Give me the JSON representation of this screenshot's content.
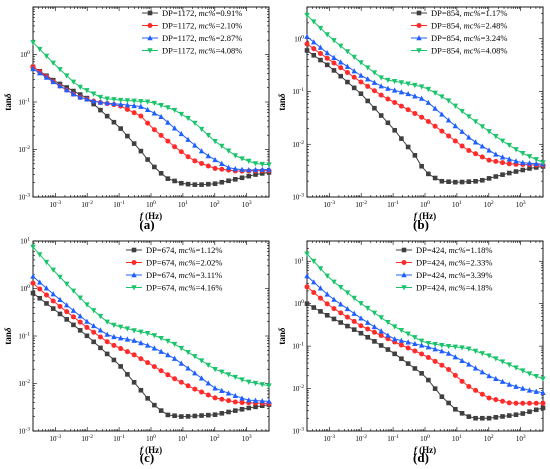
{
  "colors": {
    "black": "#3f3f3f",
    "red": "#ff2a2a",
    "blue": "#1f5fff",
    "green": "#19c46a"
  },
  "chart_data": [
    {
      "type": "line",
      "panel_label": "(a)",
      "xlabel": "f (Hz)",
      "ylabel": "tanδ",
      "xscale": "log",
      "yscale": "log",
      "xlim": [
        0.0002,
        5000
      ],
      "ylim": [
        0.001,
        10
      ],
      "xticks_exp": [
        -3,
        -2,
        -1,
        0,
        1,
        2,
        3
      ],
      "yticks_exp": [
        -3,
        -2,
        -1,
        0
      ],
      "legend": "top-right",
      "series": [
        {
          "name": "DP=1172, mc%=0.91%",
          "dp": "DP=1172, ",
          "mc_label": "mc%",
          "mc_value": "=0.91%",
          "color": "#3f3f3f",
          "marker": "square",
          "points": [
            [
              0.0002,
              0.55
            ],
            [
              0.001,
              0.27
            ],
            [
              0.01,
              0.12
            ],
            [
              0.1,
              0.03
            ],
            [
              0.5,
              0.009
            ],
            [
              1,
              0.005
            ],
            [
              3,
              0.0025
            ],
            [
              10,
              0.0019
            ],
            [
              30,
              0.0018
            ],
            [
              100,
              0.0019
            ],
            [
              500,
              0.0024
            ],
            [
              2000,
              0.003
            ],
            [
              5000,
              0.0033
            ]
          ]
        },
        {
          "name": "DP=1172, mc%=2.10%",
          "dp": "DP=1172, ",
          "mc_label": "mc%",
          "mc_value": "=2.10%",
          "color": "#ff2a2a",
          "marker": "circle",
          "points": [
            [
              0.0002,
              0.55
            ],
            [
              0.001,
              0.25
            ],
            [
              0.005,
              0.13
            ],
            [
              0.02,
              0.1
            ],
            [
              0.1,
              0.085
            ],
            [
              0.5,
              0.05
            ],
            [
              1,
              0.03
            ],
            [
              5,
              0.012
            ],
            [
              20,
              0.006
            ],
            [
              100,
              0.004
            ],
            [
              500,
              0.0035
            ],
            [
              5000,
              0.0036
            ]
          ]
        },
        {
          "name": "DP=1172, mc%=2.87%",
          "dp": "DP=1172, ",
          "mc_label": "mc%",
          "mc_value": "=2.87%",
          "color": "#1f5fff",
          "marker": "triangle-up",
          "points": [
            [
              0.0002,
              0.5
            ],
            [
              0.001,
              0.25
            ],
            [
              0.005,
              0.13
            ],
            [
              0.02,
              0.1
            ],
            [
              0.1,
              0.09
            ],
            [
              0.5,
              0.08
            ],
            [
              2,
              0.05
            ],
            [
              10,
              0.02
            ],
            [
              50,
              0.008
            ],
            [
              300,
              0.004
            ],
            [
              1000,
              0.0037
            ],
            [
              5000,
              0.0038
            ]
          ]
        },
        {
          "name": "DP=1172, mc%=4.08%",
          "dp": "DP=1172, ",
          "mc_label": "mc%",
          "mc_value": "=4.08%",
          "color": "#19c46a",
          "marker": "triangle-down",
          "points": [
            [
              0.0002,
              1.8
            ],
            [
              0.001,
              0.6
            ],
            [
              0.005,
              0.22
            ],
            [
              0.03,
              0.12
            ],
            [
              0.1,
              0.11
            ],
            [
              1,
              0.1
            ],
            [
              5,
              0.07
            ],
            [
              20,
              0.04
            ],
            [
              100,
              0.015
            ],
            [
              500,
              0.007
            ],
            [
              2000,
              0.005
            ],
            [
              5000,
              0.0048
            ]
          ]
        }
      ]
    },
    {
      "type": "line",
      "panel_label": "(b)",
      "xlabel": "f (Hz)",
      "ylabel": "tanδ",
      "xscale": "log",
      "yscale": "log",
      "xlim": [
        0.0002,
        5000
      ],
      "ylim": [
        0.001,
        4
      ],
      "xticks_exp": [
        -3,
        -2,
        -1,
        0,
        1,
        2,
        3
      ],
      "yticks_exp": [
        -3,
        -2,
        -1,
        0
      ],
      "legend": "top-right",
      "series": [
        {
          "name": "DP=854, mc%=1.17%",
          "dp": "DP=854, ",
          "mc_label": "mc%",
          "mc_value": "=1.17%",
          "color": "#3f3f3f",
          "marker": "square",
          "points": [
            [
              0.0002,
              0.6
            ],
            [
              0.001,
              0.3
            ],
            [
              0.01,
              0.09
            ],
            [
              0.1,
              0.02
            ],
            [
              0.5,
              0.006
            ],
            [
              1,
              0.003
            ],
            [
              3,
              0.002
            ],
            [
              10,
              0.0019
            ],
            [
              50,
              0.002
            ],
            [
              300,
              0.0027
            ],
            [
              2000,
              0.0035
            ],
            [
              5000,
              0.0038
            ]
          ]
        },
        {
          "name": "DP=854, mc%=2.48%",
          "dp": "DP=854, ",
          "mc_label": "mc%",
          "mc_value": "=2.48%",
          "color": "#ff2a2a",
          "marker": "circle",
          "points": [
            [
              0.0002,
              0.8
            ],
            [
              0.001,
              0.4
            ],
            [
              0.01,
              0.15
            ],
            [
              0.05,
              0.08
            ],
            [
              0.3,
              0.045
            ],
            [
              1,
              0.03
            ],
            [
              5,
              0.015
            ],
            [
              20,
              0.008
            ],
            [
              100,
              0.005
            ],
            [
              500,
              0.0042
            ],
            [
              5000,
              0.004
            ]
          ]
        },
        {
          "name": "DP=854, mc%=3.24%",
          "dp": "DP=854, ",
          "mc_label": "mc%",
          "mc_value": "=3.24%",
          "color": "#1f5fff",
          "marker": "triangle-up",
          "points": [
            [
              0.0002,
              1.1
            ],
            [
              0.001,
              0.5
            ],
            [
              0.01,
              0.2
            ],
            [
              0.05,
              0.12
            ],
            [
              0.3,
              0.09
            ],
            [
              1,
              0.07
            ],
            [
              5,
              0.03
            ],
            [
              30,
              0.012
            ],
            [
              200,
              0.006
            ],
            [
              1000,
              0.0045
            ],
            [
              5000,
              0.0042
            ]
          ]
        },
        {
          "name": "DP=854, mc%=4.08%",
          "dp": "DP=854, ",
          "mc_label": "mc%",
          "mc_value": "=4.08%",
          "color": "#19c46a",
          "marker": "triangle-down",
          "points": [
            [
              0.0002,
              2.8
            ],
            [
              0.001,
              1.1
            ],
            [
              0.01,
              0.35
            ],
            [
              0.05,
              0.17
            ],
            [
              0.3,
              0.14
            ],
            [
              1,
              0.12
            ],
            [
              5,
              0.07
            ],
            [
              30,
              0.03
            ],
            [
              200,
              0.013
            ],
            [
              1000,
              0.007
            ],
            [
              5000,
              0.0045
            ]
          ]
        }
      ]
    },
    {
      "type": "line",
      "panel_label": "(c)",
      "xlabel": "f (Hz)",
      "ylabel": "tanδ",
      "xscale": "log",
      "yscale": "log",
      "xlim": [
        0.0002,
        5000
      ],
      "ylim": [
        0.001,
        10
      ],
      "xticks_exp": [
        -3,
        -2,
        -1,
        0,
        1,
        2,
        3
      ],
      "yticks_exp": [
        -3,
        -2,
        -1,
        0,
        1
      ],
      "legend": "top-right",
      "series": [
        {
          "name": "DP=674, mc%=1.12%",
          "dp": "DP=674, ",
          "mc_label": "mc%",
          "mc_value": "=1.12%",
          "color": "#3f3f3f",
          "marker": "square",
          "points": [
            [
              0.0002,
              0.8
            ],
            [
              0.001,
              0.35
            ],
            [
              0.01,
              0.1
            ],
            [
              0.1,
              0.025
            ],
            [
              0.5,
              0.007
            ],
            [
              1,
              0.004
            ],
            [
              3,
              0.0022
            ],
            [
              10,
              0.002
            ],
            [
              100,
              0.0022
            ],
            [
              1000,
              0.003
            ],
            [
              5000,
              0.0036
            ]
          ]
        },
        {
          "name": "DP=674, mc%=2.02%",
          "dp": "DP=674, ",
          "mc_label": "mc%",
          "mc_value": "=2.02%",
          "color": "#ff2a2a",
          "marker": "circle",
          "points": [
            [
              0.0002,
              1.3
            ],
            [
              0.001,
              0.5
            ],
            [
              0.01,
              0.15
            ],
            [
              0.05,
              0.07
            ],
            [
              0.3,
              0.04
            ],
            [
              1,
              0.025
            ],
            [
              5,
              0.013
            ],
            [
              20,
              0.008
            ],
            [
              100,
              0.005
            ],
            [
              500,
              0.004
            ],
            [
              5000,
              0.0038
            ]
          ]
        },
        {
          "name": "DP=674, mc%=3.11%",
          "dp": "DP=674, ",
          "mc_label": "mc%",
          "mc_value": "=3.11%",
          "color": "#1f5fff",
          "marker": "triangle-up",
          "points": [
            [
              0.0002,
              1.8
            ],
            [
              0.001,
              0.7
            ],
            [
              0.01,
              0.2
            ],
            [
              0.05,
              0.1
            ],
            [
              0.3,
              0.08
            ],
            [
              1,
              0.06
            ],
            [
              5,
              0.035
            ],
            [
              20,
              0.018
            ],
            [
              100,
              0.008
            ],
            [
              1000,
              0.0045
            ],
            [
              5000,
              0.0042
            ]
          ]
        },
        {
          "name": "DP=674, mc%=4.16%",
          "dp": "DP=674, ",
          "mc_label": "mc%",
          "mc_value": "=4.16%",
          "color": "#19c46a",
          "marker": "triangle-down",
          "points": [
            [
              0.0002,
              7.5
            ],
            [
              0.001,
              2.2
            ],
            [
              0.01,
              0.45
            ],
            [
              0.05,
              0.18
            ],
            [
              0.3,
              0.13
            ],
            [
              1,
              0.11
            ],
            [
              5,
              0.07
            ],
            [
              20,
              0.04
            ],
            [
              100,
              0.02
            ],
            [
              1000,
              0.011
            ],
            [
              5000,
              0.009
            ]
          ]
        }
      ]
    },
    {
      "type": "line",
      "panel_label": "(d)",
      "xlabel": "f (Hz)",
      "ylabel": "tanδ",
      "xscale": "log",
      "yscale": "log",
      "xlim": [
        0.0002,
        5000
      ],
      "ylim": [
        0.001,
        30
      ],
      "xticks_exp": [
        -3,
        -2,
        -1,
        0,
        1,
        2,
        3
      ],
      "yticks_exp": [
        -3,
        -2,
        -1,
        0,
        1
      ],
      "legend": "top-right",
      "series": [
        {
          "name": "DP=424, mc%=1.18%",
          "dp": "DP=424, ",
          "mc_label": "mc%",
          "mc_value": "=1.18%",
          "color": "#3f3f3f",
          "marker": "square",
          "points": [
            [
              0.0002,
              1.0
            ],
            [
              0.001,
              0.5
            ],
            [
              0.01,
              0.2
            ],
            [
              0.1,
              0.07
            ],
            [
              1,
              0.02
            ],
            [
              3,
              0.007
            ],
            [
              10,
              0.003
            ],
            [
              30,
              0.002
            ],
            [
              100,
              0.002
            ],
            [
              1000,
              0.0025
            ],
            [
              5000,
              0.0035
            ]
          ]
        },
        {
          "name": "DP=424, mc%=2.33%",
          "dp": "DP=424, ",
          "mc_label": "mc%",
          "mc_value": "=2.33%",
          "color": "#ff2a2a",
          "marker": "circle",
          "points": [
            [
              0.0002,
              2.5
            ],
            [
              0.001,
              0.9
            ],
            [
              0.01,
              0.3
            ],
            [
              0.1,
              0.13
            ],
            [
              1,
              0.06
            ],
            [
              5,
              0.03
            ],
            [
              20,
              0.012
            ],
            [
              100,
              0.006
            ],
            [
              500,
              0.0045
            ],
            [
              5000,
              0.0045
            ]
          ]
        },
        {
          "name": "DP=424, mc%=3.39%",
          "dp": "DP=424, ",
          "mc_label": "mc%",
          "mc_value": "=3.39%",
          "color": "#1f5fff",
          "marker": "triangle-up",
          "points": [
            [
              0.0002,
              4.5
            ],
            [
              0.001,
              1.5
            ],
            [
              0.01,
              0.45
            ],
            [
              0.1,
              0.15
            ],
            [
              1,
              0.1
            ],
            [
              5,
              0.07
            ],
            [
              20,
              0.04
            ],
            [
              100,
              0.02
            ],
            [
              500,
              0.012
            ],
            [
              2000,
              0.009
            ],
            [
              5000,
              0.008
            ]
          ]
        },
        {
          "name": "DP=424, mc%=4.18%",
          "dp": "DP=424, ",
          "mc_label": "mc%",
          "mc_value": "=4.18%",
          "color": "#19c46a",
          "marker": "triangle-down",
          "points": [
            [
              0.0002,
              15
            ],
            [
              0.001,
              4
            ],
            [
              0.01,
              1.0
            ],
            [
              0.1,
              0.3
            ],
            [
              1,
              0.12
            ],
            [
              5,
              0.1
            ],
            [
              20,
              0.09
            ],
            [
              100,
              0.06
            ],
            [
              500,
              0.035
            ],
            [
              2000,
              0.022
            ],
            [
              5000,
              0.017
            ]
          ]
        }
      ]
    }
  ]
}
